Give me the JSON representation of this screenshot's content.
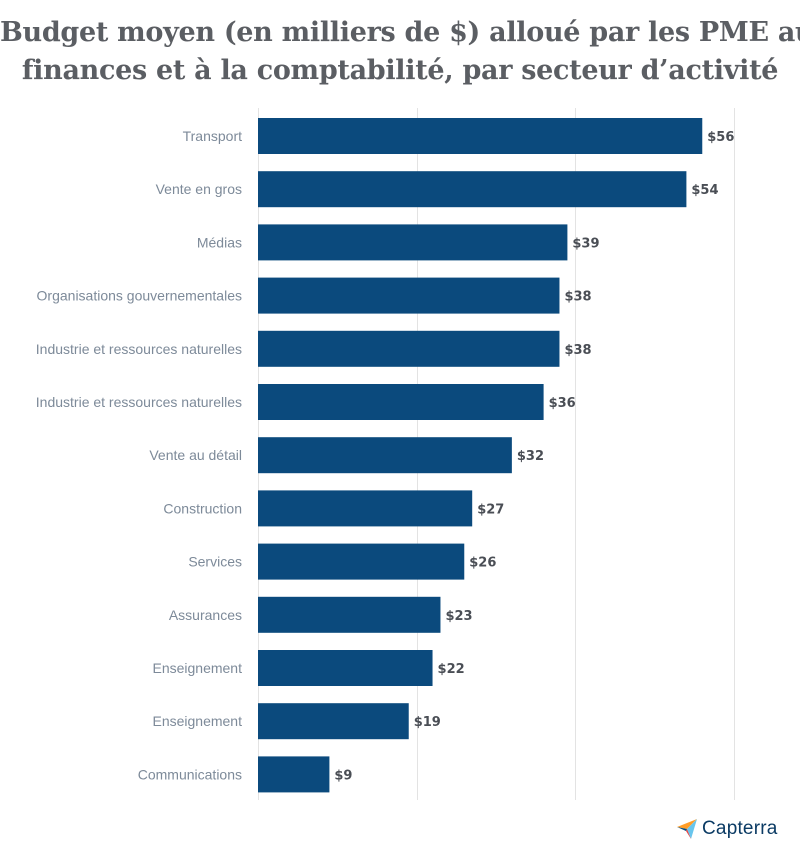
{
  "chart_data": {
    "type": "bar",
    "orientation": "horizontal",
    "title_lines": [
      "Budget moyen (en milliers de $) alloué par les PME aux",
      "finances et à la comptabilité, par secteur d’activité"
    ],
    "categories": [
      "Transport",
      "Vente en gros",
      "Médias",
      "Organisations gouvernementales",
      "Industrie et ressources naturelles",
      "Industrie et ressources naturelles",
      "Vente au détail",
      "Construction",
      "Services",
      "Assurances",
      "Enseignement",
      "Enseignement",
      "Communications"
    ],
    "values": [
      56,
      54,
      39,
      38,
      38,
      36,
      32,
      27,
      26,
      23,
      22,
      19,
      9
    ],
    "value_labels": [
      "$56",
      "$54",
      "$39",
      "$38",
      "$38",
      "$36",
      "$32",
      "$27",
      "$26",
      "$23",
      "$22",
      "$19",
      "$9"
    ],
    "xlim": [
      0,
      60
    ],
    "gridlines": [
      0,
      20,
      40,
      60
    ],
    "bar_color": "#0b4a7d",
    "grid": true
  },
  "brand": {
    "name": "Capterra"
  },
  "colors": {
    "title": "#5b5e63",
    "category_text": "#7d8a99",
    "value_text": "#4a4e55",
    "grid": "#e3e3e3"
  }
}
